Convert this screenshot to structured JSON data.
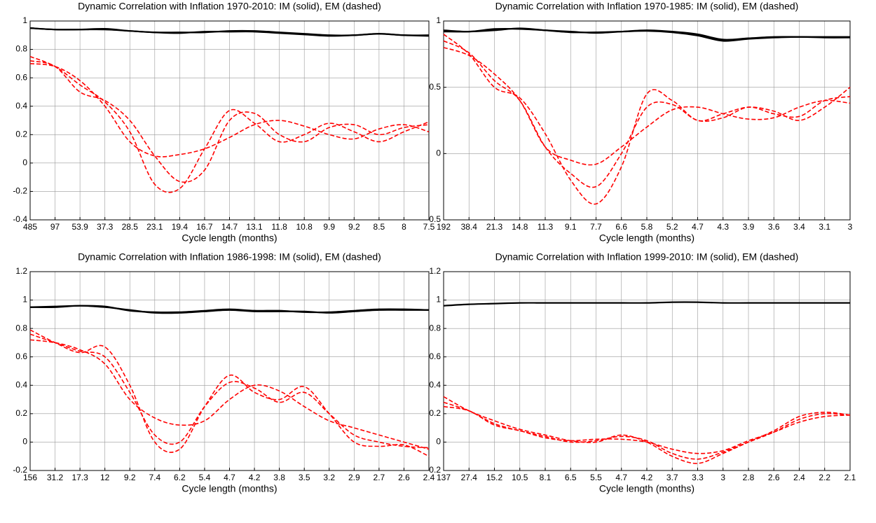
{
  "chart_data": [
    {
      "type": "line",
      "title": "Dynamic Correlation with Inflation 1970-2010: IM (solid), EM (dashed)",
      "xlabel": "Cycle length (months)",
      "categories": [
        "485",
        "97",
        "53.9",
        "37.3",
        "28.5",
        "23.1",
        "19.4",
        "16.7",
        "14.7",
        "13.1",
        "11.8",
        "10.8",
        "9.9",
        "9.2",
        "8.5",
        "8",
        "7.5"
      ],
      "ylim": [
        -0.4,
        1
      ],
      "yticks": [
        -0.4,
        -0.2,
        0,
        0.2,
        0.4,
        0.6,
        0.8,
        1
      ],
      "grid": true,
      "series": [
        {
          "color": "#000000",
          "style": "solid",
          "values": [
            0.95,
            0.94,
            0.94,
            0.94,
            0.93,
            0.92,
            0.92,
            0.92,
            0.93,
            0.93,
            0.92,
            0.91,
            0.9,
            0.9,
            0.91,
            0.9,
            0.9
          ]
        },
        {
          "color": "#000000",
          "style": "solid",
          "values": [
            0.95,
            0.94,
            0.94,
            0.945,
            0.93,
            0.92,
            0.915,
            0.925,
            0.925,
            0.925,
            0.915,
            0.905,
            0.895,
            0.9,
            0.91,
            0.9,
            0.895
          ]
        },
        {
          "color": "#ff0000",
          "style": "dashed",
          "values": [
            0.75,
            0.68,
            0.55,
            0.43,
            0.22,
            -0.15,
            -0.18,
            0.1,
            0.37,
            0.28,
            0.15,
            0.2,
            0.28,
            0.22,
            0.15,
            0.22,
            0.29
          ]
        },
        {
          "color": "#ff0000",
          "style": "dashed",
          "values": [
            0.72,
            0.68,
            0.5,
            0.44,
            0.3,
            0.05,
            -0.13,
            -0.05,
            0.3,
            0.35,
            0.2,
            0.15,
            0.25,
            0.27,
            0.2,
            0.25,
            0.27
          ]
        },
        {
          "color": "#ff0000",
          "style": "dashed",
          "values": [
            0.7,
            0.68,
            0.58,
            0.4,
            0.15,
            0.05,
            0.06,
            0.1,
            0.18,
            0.27,
            0.3,
            0.26,
            0.2,
            0.17,
            0.24,
            0.27,
            0.22
          ]
        }
      ]
    },
    {
      "type": "line",
      "title": "Dynamic Correlation with Inflation 1970-1985: IM (solid), EM (dashed)",
      "xlabel": "Cycle length (months)",
      "categories": [
        "192",
        "38.4",
        "21.3",
        "14.8",
        "11.3",
        "9.1",
        "7.7",
        "6.6",
        "5.8",
        "5.2",
        "4.7",
        "4.3",
        "3.9",
        "3.6",
        "3.4",
        "3.1",
        "3"
      ],
      "ylim": [
        -0.5,
        1
      ],
      "yticks": [
        -0.5,
        0,
        0.5,
        1
      ],
      "grid": true,
      "series": [
        {
          "color": "#000000",
          "style": "solid",
          "values": [
            0.93,
            0.92,
            0.94,
            0.94,
            0.93,
            0.92,
            0.91,
            0.92,
            0.93,
            0.92,
            0.9,
            0.86,
            0.87,
            0.88,
            0.88,
            0.88,
            0.88
          ]
        },
        {
          "color": "#000000",
          "style": "solid",
          "values": [
            0.92,
            0.92,
            0.93,
            0.945,
            0.93,
            0.915,
            0.915,
            0.92,
            0.925,
            0.915,
            0.89,
            0.85,
            0.865,
            0.875,
            0.88,
            0.875,
            0.875
          ]
        },
        {
          "color": "#ff0000",
          "style": "dashed",
          "values": [
            0.9,
            0.75,
            0.5,
            0.42,
            0.15,
            -0.2,
            -0.38,
            -0.1,
            0.45,
            0.4,
            0.25,
            0.3,
            0.35,
            0.32,
            0.25,
            0.35,
            0.5
          ]
        },
        {
          "color": "#ff0000",
          "style": "dashed",
          "values": [
            0.85,
            0.76,
            0.55,
            0.4,
            0.05,
            -0.15,
            -0.25,
            0,
            0.35,
            0.37,
            0.25,
            0.27,
            0.35,
            0.3,
            0.28,
            0.4,
            0.43
          ]
        },
        {
          "color": "#ff0000",
          "style": "dashed",
          "values": [
            0.8,
            0.74,
            0.6,
            0.4,
            0.05,
            -0.05,
            -0.08,
            0.05,
            0.2,
            0.33,
            0.35,
            0.3,
            0.26,
            0.27,
            0.35,
            0.4,
            0.38
          ]
        }
      ]
    },
    {
      "type": "line",
      "title": "Dynamic Correlation with Inflation 1986-1998: IM (solid), EM (dashed)",
      "xlabel": "Cycle length (months)",
      "categories": [
        "156",
        "31.2",
        "17.3",
        "12",
        "9.2",
        "7.4",
        "6.2",
        "5.4",
        "4.7",
        "4.2",
        "3.8",
        "3.5",
        "3.2",
        "2.9",
        "2.7",
        "2.6",
        "2.4"
      ],
      "ylim": [
        -0.2,
        1.2
      ],
      "yticks": [
        -0.2,
        0,
        0.2,
        0.4,
        0.6,
        0.8,
        1,
        1.2
      ],
      "grid": true,
      "series": [
        {
          "color": "#000000",
          "style": "solid",
          "values": [
            0.95,
            0.95,
            0.96,
            0.95,
            0.93,
            0.91,
            0.91,
            0.92,
            0.93,
            0.92,
            0.92,
            0.92,
            0.91,
            0.92,
            0.93,
            0.93,
            0.93
          ]
        },
        {
          "color": "#000000",
          "style": "solid",
          "values": [
            0.95,
            0.955,
            0.96,
            0.955,
            0.925,
            0.915,
            0.915,
            0.925,
            0.935,
            0.925,
            0.925,
            0.915,
            0.915,
            0.925,
            0.935,
            0.935,
            0.93
          ]
        },
        {
          "color": "#ff0000",
          "style": "dashed",
          "values": [
            0.79,
            0.7,
            0.63,
            0.67,
            0.4,
            0.0,
            -0.05,
            0.25,
            0.47,
            0.35,
            0.3,
            0.39,
            0.2,
            0.0,
            -0.03,
            -0.02,
            -0.1
          ]
        },
        {
          "color": "#ff0000",
          "style": "dashed",
          "values": [
            0.76,
            0.7,
            0.64,
            0.6,
            0.35,
            0.05,
            0.0,
            0.25,
            0.42,
            0.38,
            0.28,
            0.35,
            0.2,
            0.05,
            0.0,
            -0.03,
            -0.04
          ]
        },
        {
          "color": "#ff0000",
          "style": "dashed",
          "values": [
            0.72,
            0.7,
            0.65,
            0.55,
            0.3,
            0.17,
            0.12,
            0.15,
            0.3,
            0.4,
            0.36,
            0.25,
            0.15,
            0.1,
            0.05,
            0.0,
            -0.05
          ]
        }
      ]
    },
    {
      "type": "line",
      "title": "Dynamic Correlation with Inflation 1999-2010: IM (solid), EM (dashed)",
      "xlabel": "Cycle length (months)",
      "categories": [
        "137",
        "27.4",
        "15.2",
        "10.5",
        "8.1",
        "6.5",
        "5.5",
        "4.7",
        "4.2",
        "3.7",
        "3.3",
        "3",
        "2.8",
        "2.6",
        "2.4",
        "2.2",
        "2.1"
      ],
      "ylim": [
        -0.2,
        1.2
      ],
      "yticks": [
        -0.2,
        0,
        0.2,
        0.4,
        0.6,
        0.8,
        1,
        1.2
      ],
      "grid": true,
      "series": [
        {
          "color": "#000000",
          "style": "solid",
          "values": [
            0.96,
            0.97,
            0.975,
            0.98,
            0.98,
            0.98,
            0.98,
            0.98,
            0.98,
            0.985,
            0.985,
            0.98,
            0.98,
            0.98,
            0.98,
            0.98,
            0.98
          ]
        },
        {
          "color": "#ff0000",
          "style": "dashed",
          "values": [
            0.32,
            0.22,
            0.15,
            0.09,
            0.05,
            0.01,
            0.0,
            0.05,
            0.0,
            -0.1,
            -0.15,
            -0.08,
            0.0,
            0.08,
            0.18,
            0.21,
            0.19
          ]
        },
        {
          "color": "#ff0000",
          "style": "dashed",
          "values": [
            0.28,
            0.22,
            0.13,
            0.08,
            0.04,
            0.0,
            0.01,
            0.04,
            0.01,
            -0.08,
            -0.12,
            -0.07,
            0.0,
            0.07,
            0.16,
            0.2,
            0.19
          ]
        },
        {
          "color": "#ff0000",
          "style": "dashed",
          "values": [
            0.25,
            0.22,
            0.12,
            0.08,
            0.03,
            0.01,
            0.02,
            0.02,
            0.0,
            -0.05,
            -0.08,
            -0.06,
            0.01,
            0.07,
            0.14,
            0.18,
            0.19
          ]
        }
      ]
    }
  ]
}
